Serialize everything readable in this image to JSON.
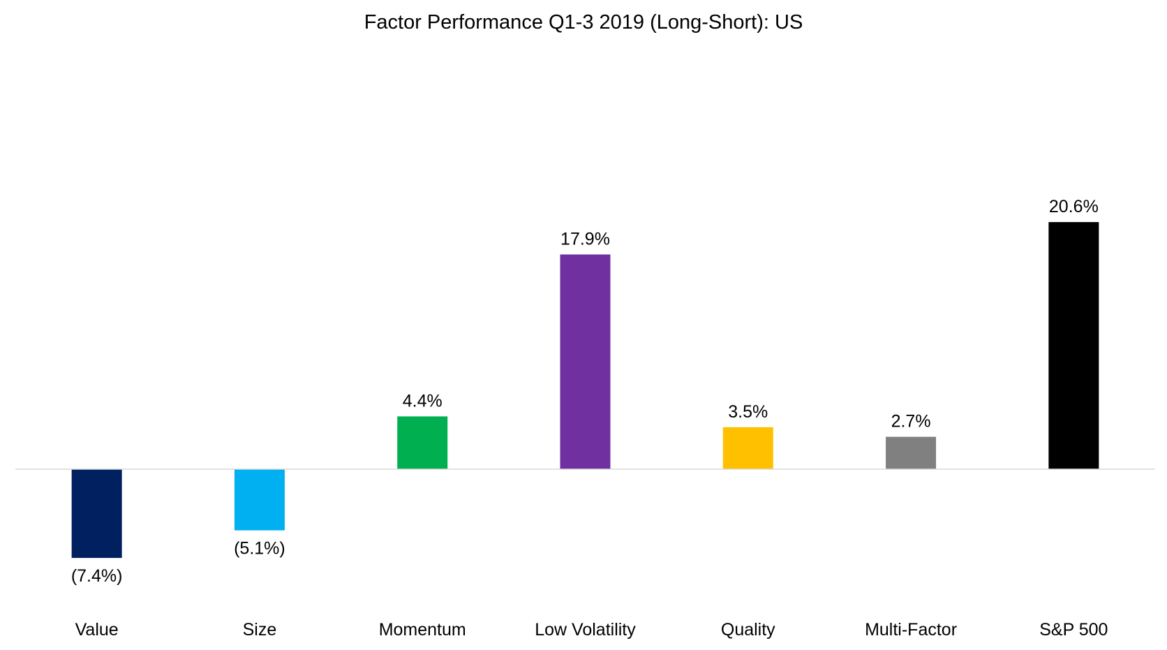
{
  "chart_data": {
    "type": "bar",
    "title": "Factor Performance Q1-3 2019 (Long-Short): US",
    "xlabel": "",
    "ylabel": "",
    "categories": [
      "Value",
      "Size",
      "Momentum",
      "Low Volatility",
      "Quality",
      "Multi-Factor",
      "S&P 500"
    ],
    "values": [
      -7.4,
      -5.1,
      4.4,
      17.9,
      3.5,
      2.7,
      20.6
    ],
    "data_labels": [
      "(7.4%)",
      "(5.1%)",
      "4.4%",
      "17.9%",
      "3.5%",
      "2.7%",
      "20.6%"
    ],
    "colors": [
      "#002060",
      "#00B0F0",
      "#00B050",
      "#7030A0",
      "#FFC000",
      "#808080",
      "#000000"
    ],
    "ylim": [
      -10,
      25
    ],
    "grid": false,
    "legend": "none",
    "axis_line_color": "#D9D9D9"
  }
}
